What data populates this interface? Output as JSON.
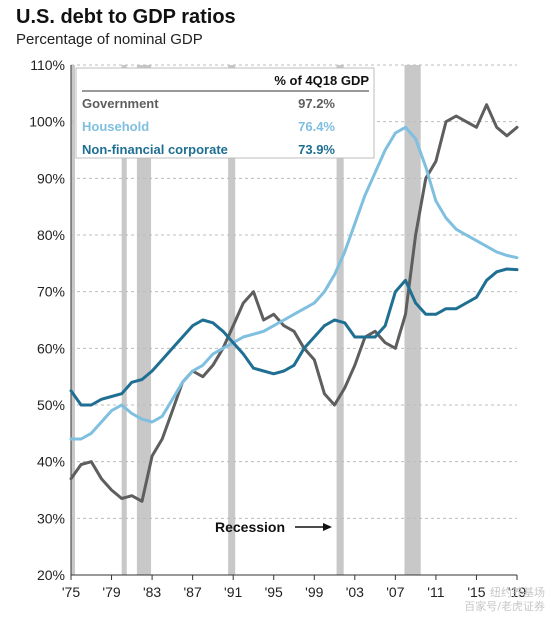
{
  "header": {
    "title": "U.S. debt to GDP ratios",
    "subtitle": "Percentage of nominal GDP"
  },
  "legend": {
    "header": "% of 4Q18 GDP",
    "rows": [
      {
        "label": "Government",
        "value": "97.2%",
        "color": "#5e5e5e"
      },
      {
        "label": "Household",
        "value": "76.4%",
        "color": "#7fbfe0"
      },
      {
        "label": "Non-financial corporate",
        "value": "73.9%",
        "color": "#1f6f93"
      }
    ]
  },
  "annotation": {
    "label": "Recession"
  },
  "watermark": {
    "line1": "纽约养基场",
    "line2": "百家号/老虎证券"
  },
  "chart_data": {
    "type": "line",
    "title": "U.S. debt to GDP ratios",
    "subtitle": "Percentage of nominal GDP",
    "xlabel": "",
    "ylabel": "",
    "xlim": [
      1975,
      2019
    ],
    "ylim": [
      20,
      110
    ],
    "x_ticks": [
      1975,
      1979,
      1983,
      1987,
      1991,
      1995,
      1999,
      2003,
      2007,
      2011,
      2015,
      2019
    ],
    "x_tick_labels": [
      "'75",
      "'79",
      "'83",
      "'87",
      "'91",
      "'95",
      "'99",
      "'03",
      "'07",
      "'11",
      "'15",
      "'19"
    ],
    "y_ticks": [
      20,
      30,
      40,
      50,
      60,
      70,
      80,
      90,
      100,
      110
    ],
    "y_tick_labels": [
      "20%",
      "30%",
      "40%",
      "50%",
      "60%",
      "70%",
      "80%",
      "90%",
      "100%",
      "110%"
    ],
    "recessions": [
      [
        1975.0,
        1975.3
      ],
      [
        1980.0,
        1980.5
      ],
      [
        1981.5,
        1982.9
      ],
      [
        1990.5,
        1991.2
      ],
      [
        2001.2,
        2001.9
      ],
      [
        2007.9,
        2009.5
      ]
    ],
    "series": [
      {
        "name": "Government",
        "color": "#5e5e5e",
        "x": [
          1975,
          1976,
          1977,
          1978,
          1979,
          1980,
          1981,
          1982,
          1983,
          1984,
          1985,
          1986,
          1987,
          1988,
          1989,
          1990,
          1991,
          1992,
          1993,
          1994,
          1995,
          1996,
          1997,
          1998,
          1999,
          2000,
          2001,
          2002,
          2003,
          2004,
          2005,
          2006,
          2007,
          2008,
          2009,
          2010,
          2011,
          2012,
          2013,
          2014,
          2015,
          2016,
          2017,
          2018,
          2019
        ],
        "y": [
          37,
          39.5,
          40,
          37,
          35,
          33.5,
          34,
          33,
          41,
          44,
          49,
          54,
          56,
          55,
          57,
          60,
          64,
          68,
          70,
          65,
          66,
          64,
          63,
          60,
          58,
          52,
          50,
          53,
          57,
          62,
          63,
          61,
          60,
          66,
          80,
          90,
          93,
          100,
          101,
          100,
          99,
          103,
          99,
          97.5,
          99
        ]
      },
      {
        "name": "Household",
        "color": "#7fbfe0",
        "x": [
          1975,
          1976,
          1977,
          1978,
          1979,
          1980,
          1981,
          1982,
          1983,
          1984,
          1985,
          1986,
          1987,
          1988,
          1989,
          1990,
          1991,
          1992,
          1993,
          1994,
          1995,
          1996,
          1997,
          1998,
          1999,
          2000,
          2001,
          2002,
          2003,
          2004,
          2005,
          2006,
          2007,
          2008,
          2009,
          2010,
          2011,
          2012,
          2013,
          2014,
          2015,
          2016,
          2017,
          2018,
          2019
        ],
        "y": [
          44,
          44,
          45,
          47,
          49,
          50,
          48.5,
          47.5,
          47,
          48,
          51,
          54,
          56,
          57,
          59,
          60,
          61,
          62,
          62.5,
          63,
          64,
          65,
          66,
          67,
          68,
          70,
          73,
          77,
          82,
          87,
          91,
          95,
          98,
          99,
          97,
          92,
          86,
          83,
          81,
          80,
          79,
          78,
          77,
          76.4,
          76
        ]
      },
      {
        "name": "Non-financial corporate",
        "color": "#1f6f93",
        "x": [
          1975,
          1976,
          1977,
          1978,
          1979,
          1980,
          1981,
          1982,
          1983,
          1984,
          1985,
          1986,
          1987,
          1988,
          1989,
          1990,
          1991,
          1992,
          1993,
          1994,
          1995,
          1996,
          1997,
          1998,
          1999,
          2000,
          2001,
          2002,
          2003,
          2004,
          2005,
          2006,
          2007,
          2008,
          2009,
          2010,
          2011,
          2012,
          2013,
          2014,
          2015,
          2016,
          2017,
          2018,
          2019
        ],
        "y": [
          52.5,
          50,
          50,
          51,
          51.5,
          52,
          54,
          54.5,
          56,
          58,
          60,
          62,
          64,
          65,
          64.5,
          63,
          61,
          59,
          56.5,
          56,
          55.5,
          56,
          57,
          60,
          62,
          64,
          65,
          64.5,
          62,
          62,
          62,
          64,
          70,
          72,
          68,
          66,
          66,
          67,
          67,
          68,
          69,
          72,
          73.5,
          74,
          73.9
        ]
      }
    ]
  }
}
